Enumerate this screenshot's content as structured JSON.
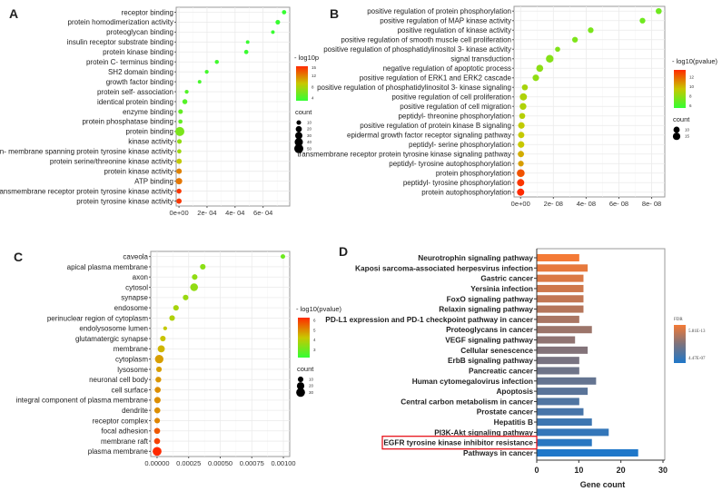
{
  "panels": {
    "A": "A",
    "B": "B",
    "C": "C",
    "D": "D"
  },
  "chart_data": [
    {
      "id": "A",
      "type": "scatter",
      "title": "",
      "xlabel": "",
      "ylabel": "",
      "xlim": [
        -2e-05,
        0.00079
      ],
      "xticks": [
        {
          "v": 0,
          "label": "0e+00"
        },
        {
          "v": 0.0002,
          "label": "2e- 04"
        },
        {
          "v": 0.0004,
          "label": "4e- 04"
        },
        {
          "v": 0.0006,
          "label": "6e- 04"
        }
      ],
      "color_legend": {
        "title": "- log10p",
        "ticks": [
          15,
          12,
          8,
          4
        ],
        "range": [
          3,
          15.5
        ],
        "low": "#33ff33",
        "high": "#ff2a00"
      },
      "size_legend": {
        "title": "count",
        "values": [
          10,
          20,
          30,
          40,
          50
        ]
      },
      "categories": [
        "receptor binding",
        "protein homodimerization activity",
        "proteoglycan binding",
        "insulin receptor substrate binding",
        "protein kinase binding",
        "protein C- terminus binding",
        "SH2 domain binding",
        "growth factor binding",
        "protein self- association",
        "identical protein binding",
        "enzyme binding",
        "protein phosphatase binding",
        "protein binding",
        "kinase activity",
        "non- membrane spanning protein tyrosine kinase activity",
        "protein serine/threonine kinase activity",
        "protein kinase activity",
        "ATP binding",
        "transmembrane receptor protein tyrosine kinase activity",
        "protein tyrosine kinase activity"
      ],
      "x": [
        0.00075,
        0.000705,
        0.00067,
        0.00049,
        0.00048,
        0.00027,
        0.000198,
        0.000147,
        5.5e-05,
        4.2e-05,
        1.1e-05,
        1e-05,
        6e-06,
        3e-06,
        2e-06,
        1e-06,
        5e-07,
        3e-07,
        1e-07,
        1e-07
      ],
      "color": [
        3.1,
        3.2,
        3.2,
        3.3,
        3.3,
        3.6,
        3.7,
        3.8,
        4.3,
        4.4,
        5,
        5,
        6,
        7,
        7.5,
        9,
        12,
        12.5,
        15,
        15
      ],
      "count": [
        8,
        10,
        5,
        5,
        8,
        7,
        6,
        5,
        6,
        12,
        10,
        8,
        50,
        10,
        8,
        14,
        15,
        22,
        12,
        14
      ]
    },
    {
      "id": "B",
      "type": "scatter",
      "title": "",
      "xlabel": "",
      "ylabel": "",
      "xlim": [
        -4e-09,
        8.8e-08
      ],
      "xticks": [
        {
          "v": 0,
          "label": "0e+00"
        },
        {
          "v": 2e-08,
          "label": "2e- 08"
        },
        {
          "v": 4e-08,
          "label": "4e- 08"
        },
        {
          "v": 6e-08,
          "label": "6e- 08"
        },
        {
          "v": 8e-08,
          "label": "8e- 08"
        }
      ],
      "color_legend": {
        "title": "- log10(pvalue)",
        "ticks": [
          12,
          10,
          8,
          6
        ],
        "range": [
          5.5,
          13.5
        ],
        "low": "#33ff33",
        "high": "#ff2a00"
      },
      "size_legend": {
        "title": "count",
        "values": [
          10,
          15
        ]
      },
      "categories": [
        "positive regulation of protein phosphorylation",
        "positive regulation of MAP kinase activity",
        "positive regulation of kinase activity",
        "positive regulation of smooth muscle cell proliferation",
        "positive regulation of phosphatidylinositol 3- kinase activity",
        "signal transduction",
        "negative regulation of apoptotic process",
        "positive regulation of ERK1 and ERK2 cascade",
        "positive regulation of phosphatidylinositol 3- kinase signaling",
        "positive regulation of cell proliferation",
        "positive regulation of cell migration",
        "peptidyl- threonine phosphorylation",
        "positive regulation of protein kinase B signaling",
        "epidermal growth factor receptor signaling pathway",
        "peptidyl- serine phosphorylation",
        "transmembrane receptor protein tyrosine kinase signaling pathway",
        "peptidyl- tyrosine autophosphorylation",
        "protein phosphorylation",
        "peptidyl- tyrosine phosphorylation",
        "protein autophosphorylation"
      ],
      "x": [
        8.43e-08,
        7.44e-08,
        4.28e-08,
        3.32e-08,
        2.26e-08,
        1.78e-08,
        1.17e-08,
        9.3e-09,
        2.6e-09,
        1.7e-09,
        1.5e-09,
        1e-09,
        5e-10,
        4e-10,
        3e-10,
        2e-10,
        2e-10,
        1e-10,
        5e-11,
        3e-11
      ],
      "color": [
        7.1,
        7.1,
        7.4,
        7.5,
        7.6,
        7.7,
        7.9,
        8,
        8.6,
        8.8,
        8.8,
        9,
        9.3,
        9.4,
        9.5,
        10.2,
        10.6,
        12.5,
        13.2,
        13.5
      ],
      "count": [
        9,
        8,
        8,
        8,
        6,
        16,
        13,
        11,
        9,
        14,
        12,
        9,
        11,
        10,
        11,
        10,
        8,
        17,
        14,
        14
      ]
    },
    {
      "id": "C",
      "type": "scatter",
      "title": "",
      "xlabel": "",
      "ylabel": "",
      "xlim": [
        -5e-05,
        0.00105
      ],
      "xticks": [
        {
          "v": 0,
          "label": "0.00000"
        },
        {
          "v": 0.00025,
          "label": "0.00025"
        },
        {
          "v": 0.0005,
          "label": "0.00050"
        },
        {
          "v": 0.00075,
          "label": "0.00075"
        },
        {
          "v": 0.001,
          "label": "0.00100"
        }
      ],
      "color_legend": {
        "title": "- log10(pvalue)",
        "ticks": [
          6,
          5,
          4,
          3
        ],
        "range": [
          2.2,
          6.3
        ],
        "low": "#33ff33",
        "high": "#ff2a00"
      },
      "size_legend": {
        "title": "count",
        "values": [
          10,
          20,
          30
        ]
      },
      "categories": [
        "caveola",
        "apical plasma membrane",
        "axon",
        "cytosol",
        "synapse",
        "endosome",
        "perinuclear region of cytoplasm",
        "endolysosome lumen",
        "glutamatergic synapse",
        "membrane",
        "cytoplasm",
        "lysosome",
        "neuronal cell body",
        "cell surface",
        "integral component of plasma membrane",
        "dendrite",
        "receptor complex",
        "focal adhesion",
        "membrane raft",
        "plasma membrane"
      ],
      "x": [
        0.000996,
        0.000362,
        0.000298,
        0.000293,
        0.000226,
        0.00015,
        0.000119,
        6.4e-05,
        4.6e-05,
        3.3e-05,
        1.7e-05,
        1.5e-05,
        1e-05,
        5e-06,
        3e-06,
        2e-06,
        1e-06,
        5e-07,
        3e-07,
        1e-07
      ],
      "color": [
        3,
        3.4,
        3.5,
        3.5,
        3.6,
        3.8,
        3.9,
        4.2,
        4.3,
        4.5,
        4.8,
        4.8,
        4.9,
        5,
        5,
        5,
        5.1,
        5.7,
        6,
        6.3
      ],
      "count": [
        6,
        10,
        10,
        22,
        10,
        10,
        10,
        4,
        10,
        18,
        27,
        10,
        11,
        12,
        14,
        12,
        10,
        12,
        12,
        30
      ]
    },
    {
      "id": "D",
      "type": "bar",
      "orientation": "horizontal",
      "title": "",
      "xlabel": "Gene count",
      "ylabel": "",
      "xlim": [
        0,
        30
      ],
      "xticks": [
        0,
        10,
        20,
        30
      ],
      "color_legend": {
        "title": "FDR",
        "high_label": "5.81E-13",
        "low_label": "4.47E-07",
        "top_color": "#f47a36",
        "bottom_color": "#1f77c9"
      },
      "categories": [
        "Neurotrophin signaling pathway",
        "Kaposi sarcoma-associated herpesvirus infection",
        "Gastric cancer",
        "Yersinia infection",
        "FoxO signaling pathway",
        "Relaxin signaling pathway",
        "PD-L1 expression and PD-1 checkpoint pathway in cancer",
        "Proteoglycans in cancer",
        "VEGF signaling pathway",
        "Cellular senescence",
        "ErbB signaling pathway",
        "Pancreatic cancer",
        "Human cytomegalovirus infection",
        "Apoptosis",
        "Central carbon metabolism in cancer",
        "Prostate cancer",
        "Hepatitis B",
        "PI3K-Akt signaling pathway",
        "EGFR tyrosine kinase inhibitor resistance",
        "Pathways in cancer"
      ],
      "values": [
        10,
        12,
        11,
        11,
        11,
        11,
        10,
        13,
        9,
        12,
        10,
        10,
        14,
        12,
        10,
        11,
        13,
        17,
        13,
        24
      ],
      "highlighted": "EGFR tyrosine kinase inhibitor resistance",
      "highlight_color": "#e8141c"
    }
  ]
}
